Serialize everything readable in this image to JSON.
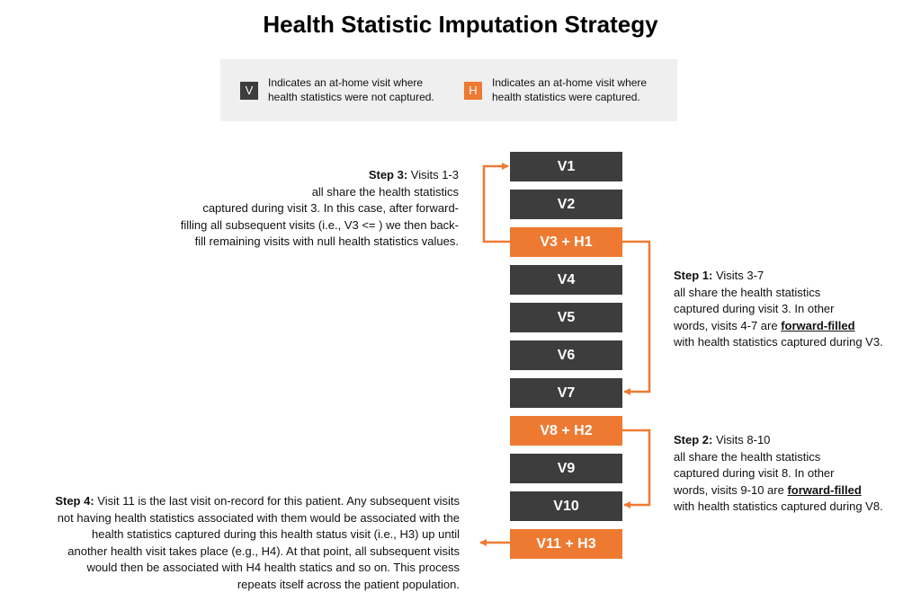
{
  "title": "Health Statistic Imputation Strategy",
  "legend": {
    "v_badge": "V",
    "v_line1": "Indicates an at-home visit where",
    "v_line2": "health statistics were not captured.",
    "h_badge": "H",
    "h_line1": "Indicates an at-home visit where",
    "h_line2": "health statistics were captured.",
    "colors": {
      "visit": "#3d3d3d",
      "health": "#ee7a32"
    }
  },
  "visits": [
    {
      "label": "V1",
      "type": "visit"
    },
    {
      "label": "V2",
      "type": "visit"
    },
    {
      "label": "V3 + H1",
      "type": "health"
    },
    {
      "label": "V4",
      "type": "visit"
    },
    {
      "label": "V5",
      "type": "visit"
    },
    {
      "label": "V6",
      "type": "visit"
    },
    {
      "label": "V7",
      "type": "visit"
    },
    {
      "label": "V8 + H2",
      "type": "health"
    },
    {
      "label": "V9",
      "type": "visit"
    },
    {
      "label": "V10",
      "type": "visit"
    },
    {
      "label": "V11 + H3",
      "type": "health"
    }
  ],
  "step1": {
    "head": "Step 1:",
    "l1": " Visits 3-7",
    "l2": "all share the health statistics",
    "l3": "captured during visit 3.  In other",
    "l4a": "words, visits 4-7 are ",
    "l4b": "forward-filled",
    "l5": "with health statistics captured during V3."
  },
  "step2": {
    "head": "Step 2:",
    "l1": " Visits 8-10",
    "l2": "all share the health statistics",
    "l3": "captured during visit 8. In other",
    "l4a": "words, visits 9-10 are ",
    "l4b": "forward-filled",
    "l5": "with health statistics captured during V8."
  },
  "step3": {
    "head": "Step 3:",
    "l1": " Visits 1-3",
    "l2": "all share the health statistics",
    "l3": "captured during visit 3. In this case, after forward-",
    "l4": "filling all subsequent visits (i.e., V3 <= ) we then back-",
    "l5": "fill remaining visits with null health statistics values."
  },
  "step4": {
    "head": "Step 4:",
    "l1": " Visit 11 is the last visit on-record for this patient.  Any subsequent visits",
    "l2": "not having health statistics associated with them would be associated with the",
    "l3": "health statistics captured during this health status visit (i.e., H3) up until",
    "l4": "another health visit takes place (e.g., H4).  At that point, all subsequent visits",
    "l5": "would then be associated with H4 health statics and so on.  This process",
    "l6": "repeats itself across the patient population."
  }
}
